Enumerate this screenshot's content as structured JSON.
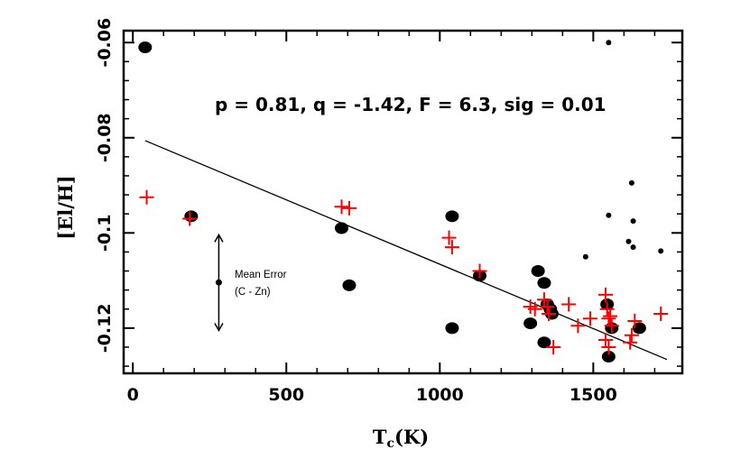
{
  "chart_data": {
    "type": "scatter",
    "title": "",
    "xlabel": "T",
    "xlabel_sub": "c",
    "xlabel_unit": "(K)",
    "ylabel": "[El/H]",
    "xlim": [
      -30,
      1790
    ],
    "ylim": [
      -0.1295,
      -0.0575
    ],
    "xticks": [
      0,
      500,
      1000,
      1500
    ],
    "xtick_labels": [
      "0",
      "500",
      "1000",
      "1500"
    ],
    "yticks": [
      -0.12,
      -0.1,
      -0.08,
      -0.06
    ],
    "ytick_labels": [
      "-0.12",
      "-0.1",
      "-0.08",
      "-0.06"
    ],
    "annotation": "p = 0.81, q = -1.42, F = 6.3, sig = 0.01",
    "mean_error": {
      "label_line1": "Mean Error",
      "label_line2": "(C - Zn)",
      "x": 280,
      "center": -0.1104,
      "low": -0.1205,
      "high": -0.1004
    },
    "fit_line": {
      "x": [
        40,
        1740
      ],
      "y": [
        -0.0806,
        -0.1266
      ]
    },
    "series": [
      {
        "name": "filled-circles",
        "marker": "large-dot",
        "color": "#000000",
        "points": [
          [
            40,
            -0.061
          ],
          [
            190,
            -0.0965
          ],
          [
            680,
            -0.099
          ],
          [
            705,
            -0.111
          ],
          [
            1040,
            -0.0965
          ],
          [
            1040,
            -0.12
          ],
          [
            1130,
            -0.109
          ],
          [
            1295,
            -0.119
          ],
          [
            1320,
            -0.108
          ],
          [
            1340,
            -0.1105
          ],
          [
            1340,
            -0.123
          ],
          [
            1350,
            -0.115
          ],
          [
            1360,
            -0.116
          ],
          [
            1365,
            -0.117
          ],
          [
            1545,
            -0.115
          ],
          [
            1550,
            -0.126
          ],
          [
            1560,
            -0.12
          ],
          [
            1650,
            -0.12
          ]
        ]
      },
      {
        "name": "small-dots",
        "marker": "small-dot",
        "color": "#000000",
        "points": [
          [
            1550,
            -0.06
          ],
          [
            1625,
            -0.0895
          ],
          [
            1475,
            -0.105
          ],
          [
            1550,
            -0.0963
          ],
          [
            1630,
            -0.0975
          ],
          [
            1615,
            -0.1018
          ],
          [
            1630,
            -0.103
          ],
          [
            1720,
            -0.1038
          ]
        ]
      },
      {
        "name": "red-crosses",
        "marker": "plus",
        "color": "#ff0000",
        "points": [
          [
            45,
            -0.0925
          ],
          [
            185,
            -0.097
          ],
          [
            680,
            -0.0945
          ],
          [
            705,
            -0.0948
          ],
          [
            1030,
            -0.101
          ],
          [
            1040,
            -0.103
          ],
          [
            1130,
            -0.108
          ],
          [
            1295,
            -0.1155
          ],
          [
            1310,
            -0.116
          ],
          [
            1340,
            -0.114
          ],
          [
            1350,
            -0.1155
          ],
          [
            1355,
            -0.117
          ],
          [
            1370,
            -0.124
          ],
          [
            1420,
            -0.115
          ],
          [
            1450,
            -0.1195
          ],
          [
            1490,
            -0.118
          ],
          [
            1540,
            -0.113
          ],
          [
            1545,
            -0.116
          ],
          [
            1550,
            -0.118
          ],
          [
            1555,
            -0.1175
          ],
          [
            1560,
            -0.1195
          ],
          [
            1540,
            -0.1225
          ],
          [
            1550,
            -0.124
          ],
          [
            1620,
            -0.123
          ],
          [
            1625,
            -0.1215
          ],
          [
            1635,
            -0.1185
          ],
          [
            1720,
            -0.117
          ]
        ]
      }
    ]
  }
}
